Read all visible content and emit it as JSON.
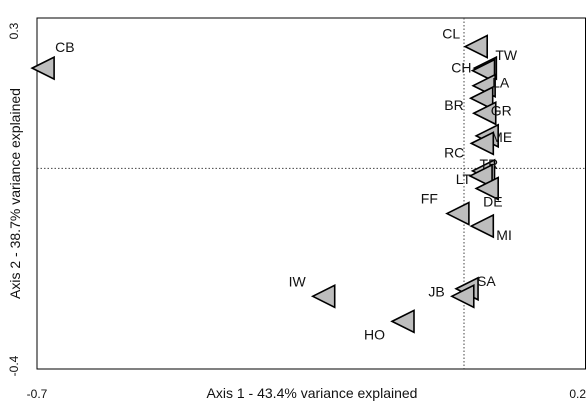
{
  "chart_data": {
    "type": "scatter",
    "title": "",
    "xlabel": "Axis 1 - 43.4% variance explained",
    "ylabel": "Axis 2 - 38.7% variance explained",
    "xlim": [
      -0.7,
      0.2
    ],
    "ylim": [
      -0.4,
      0.3
    ],
    "x_ticks": [
      "-0.7",
      "0.2"
    ],
    "y_ticks": [
      "0.3",
      "-0.4"
    ],
    "reference_lines": {
      "x": 0.0,
      "y": 0.0
    },
    "marker": "triangle-left",
    "marker_color": "#bdbdbd",
    "points": [
      {
        "label": "CB",
        "x": -0.69,
        "y": 0.2
      },
      {
        "label": "CL",
        "x": 0.02,
        "y": 0.243
      },
      {
        "label": "TW",
        "x": 0.035,
        "y": 0.2
      },
      {
        "label": "CH",
        "x": 0.032,
        "y": 0.195
      },
      {
        "label": "LA",
        "x": 0.033,
        "y": 0.165
      },
      {
        "label": "BR",
        "x": 0.029,
        "y": 0.14
      },
      {
        "label": "GR",
        "x": 0.034,
        "y": 0.11
      },
      {
        "label": "ME",
        "x": 0.038,
        "y": 0.065
      },
      {
        "label": "RC",
        "x": 0.03,
        "y": 0.05
      },
      {
        "label": "TR",
        "x": 0.032,
        "y": -0.005
      },
      {
        "label": "LT",
        "x": 0.028,
        "y": -0.015
      },
      {
        "label": "DE",
        "x": 0.038,
        "y": -0.04
      },
      {
        "label": "FF",
        "x": -0.01,
        "y": -0.09
      },
      {
        "label": "MI",
        "x": 0.03,
        "y": -0.115
      },
      {
        "label": "IW",
        "x": -0.23,
        "y": -0.255
      },
      {
        "label": "SA",
        "x": 0.005,
        "y": -0.24
      },
      {
        "label": "JB",
        "x": -0.002,
        "y": -0.255
      },
      {
        "label": "HO",
        "x": -0.1,
        "y": -0.305
      }
    ]
  }
}
